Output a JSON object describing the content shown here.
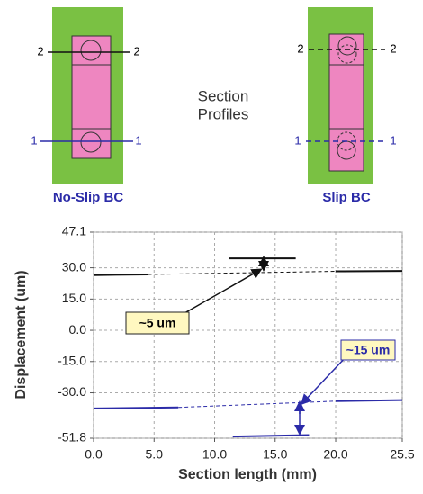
{
  "diagram": {
    "center_text": [
      "Section",
      "Profiles"
    ],
    "left": {
      "caption": "No-Slip BC",
      "line_labels": [
        "2",
        "2",
        "1",
        "1"
      ]
    },
    "right": {
      "caption": "Slip BC",
      "line_labels": [
        "2",
        "2",
        "1",
        "1"
      ]
    }
  },
  "chart_data": {
    "type": "line",
    "x_label": "Section length (mm)",
    "y_label": "Displacement (um)",
    "xlim": [
      0,
      25.5
    ],
    "ylim": [
      -51.8,
      47.1
    ],
    "xticks": [
      {
        "value": 0,
        "label": "0.0"
      },
      {
        "value": 5,
        "label": "5.0"
      },
      {
        "value": 10,
        "label": "10.0"
      },
      {
        "value": 15,
        "label": "15.0"
      },
      {
        "value": 20,
        "label": "20.0"
      },
      25.5
    ],
    "yticks": [
      47.1,
      {
        "value": 30,
        "label": "30.0"
      },
      {
        "value": 15,
        "label": "15.0"
      },
      {
        "value": 0,
        "label": "0.0"
      },
      {
        "value": -15,
        "label": "-15.0"
      },
      {
        "value": -30,
        "label": "-30.0"
      },
      -51.8
    ],
    "grid": true,
    "series": [
      {
        "color": "#111111",
        "dashed": false,
        "x": [
          0,
          4.5
        ],
        "values": [
          26.5,
          26.8
        ]
      },
      {
        "color": "#111111",
        "dashed": true,
        "x": [
          4.5,
          20
        ],
        "values": [
          26.8,
          28.3
        ]
      },
      {
        "color": "#111111",
        "dashed": false,
        "x": [
          20,
          25.5
        ],
        "values": [
          28.3,
          28.5
        ]
      },
      {
        "color": "#111111",
        "dashed": false,
        "x": [
          11.2,
          16.7
        ],
        "values": [
          34.5,
          34.5
        ]
      },
      {
        "color": "#2b2ba8",
        "dashed": false,
        "x": [
          0,
          7
        ],
        "values": [
          -37.5,
          -37
        ]
      },
      {
        "color": "#2b2ba8",
        "dashed": true,
        "x": [
          7,
          20
        ],
        "values": [
          -37,
          -34
        ]
      },
      {
        "color": "#2b2ba8",
        "dashed": false,
        "x": [
          20,
          25.5
        ],
        "values": [
          -34,
          -33.5
        ]
      },
      {
        "color": "#2b2ba8",
        "dashed": false,
        "x": [
          11.5,
          17.8
        ],
        "values": [
          -51,
          -50.3
        ]
      }
    ],
    "annotations": [
      "~5 um",
      "~15 um"
    ]
  }
}
